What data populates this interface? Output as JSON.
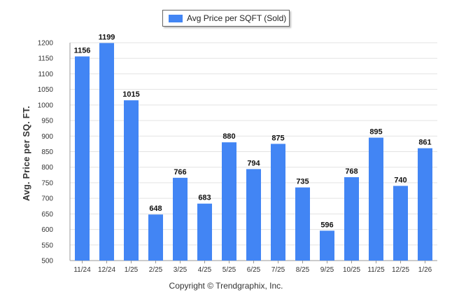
{
  "colors": {
    "bar": "#4285f4",
    "grid": "#e3e3e3",
    "axis": "#999999",
    "text": "#333333"
  },
  "legend": {
    "label": "Avg Price per SQFT (Sold)",
    "swatch_color": "#4285f4"
  },
  "footer": {
    "copyright": "Copyright © Trendgraphix, Inc."
  },
  "chart_data": {
    "type": "bar",
    "title": "",
    "xlabel": "",
    "ylabel": "Avg. Price per SQ. FT.",
    "ylim": [
      500,
      1200
    ],
    "ytick_step": 50,
    "categories": [
      "11/24",
      "12/24",
      "1/25",
      "2/25",
      "3/25",
      "4/25",
      "5/25",
      "6/25",
      "7/25",
      "8/25",
      "9/25",
      "10/25",
      "11/25",
      "12/25",
      "1/26"
    ],
    "series": [
      {
        "name": "Avg Price per SQFT (Sold)",
        "values": [
          1156,
          1199,
          1015,
          648,
          766,
          683,
          880,
          794,
          875,
          735,
          596,
          768,
          895,
          740,
          861
        ]
      }
    ],
    "legend_position": "top-center",
    "grid": true
  }
}
